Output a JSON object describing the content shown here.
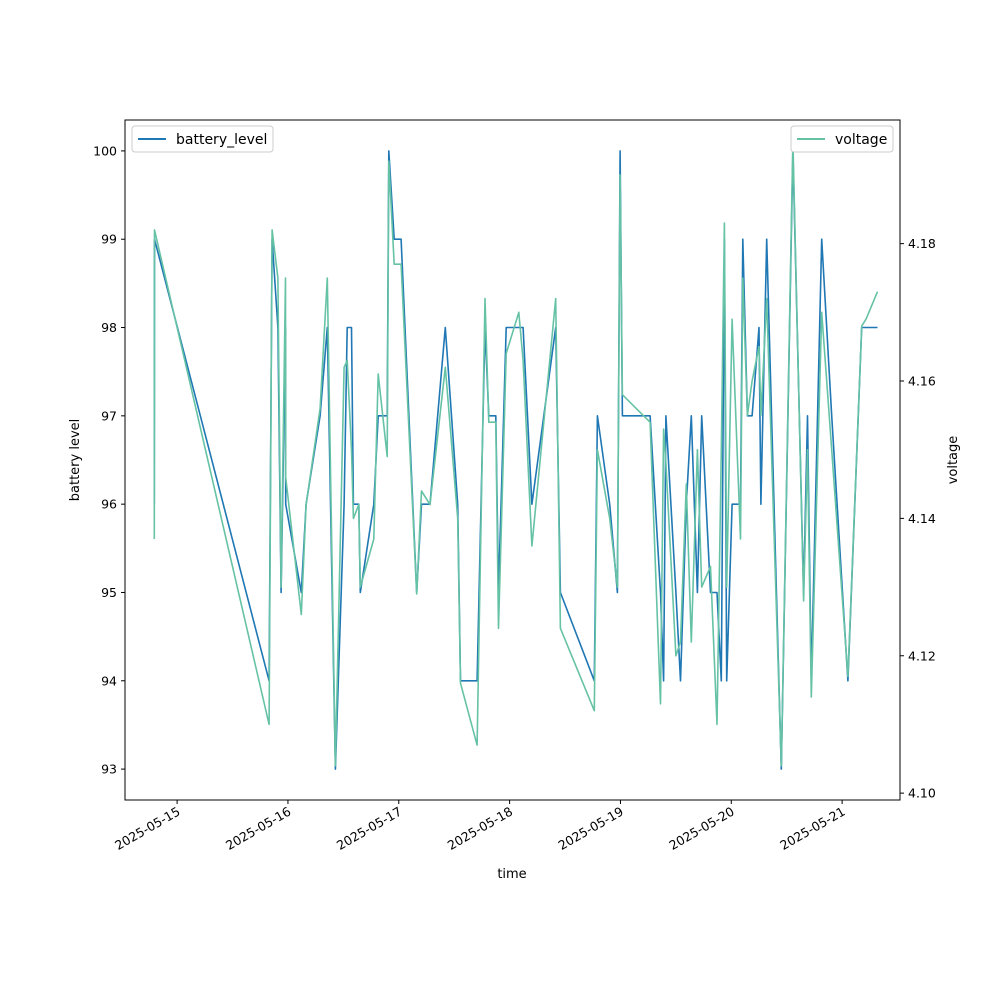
{
  "chart_data": {
    "type": "line",
    "xlabel": "time",
    "ylabel_left": "battery level",
    "ylabel_right": "voltage",
    "x_ticks": [
      "2025-05-15",
      "2025-05-16",
      "2025-05-17",
      "2025-05-18",
      "2025-05-19",
      "2025-05-20",
      "2025-05-21"
    ],
    "xlim": [
      "2025-05-14 12:43",
      "2025-05-21 12:32"
    ],
    "ylim_left": [
      92.65,
      100.35
    ],
    "yticks_left": [
      93,
      94,
      95,
      96,
      97,
      98,
      99,
      100
    ],
    "ylim_right": [
      4.099,
      4.198
    ],
    "yticks_right": [
      4.1,
      4.12,
      4.14,
      4.16,
      4.18
    ],
    "grid": false,
    "legend_left_placement": "upper-left",
    "legend_right_placement": "upper-right",
    "series": [
      {
        "name": "battery_level",
        "axis": "left",
        "color": "#1f77b4",
        "points": [
          [
            "2025-05-14 19:04",
            96.0
          ],
          [
            "2025-05-14 19:06",
            99.0
          ],
          [
            "2025-05-15 19:55",
            94.0
          ],
          [
            "2025-05-15 20:34",
            99.0
          ],
          [
            "2025-05-15 21:50",
            98.0
          ],
          [
            "2025-05-15 22:31",
            95.0
          ],
          [
            "2025-05-15 23:28",
            98.0
          ],
          [
            "2025-05-15 23:31",
            96.0
          ],
          [
            "2025-05-16 02:53",
            95.0
          ],
          [
            "2025-05-16 03:56",
            96.0
          ],
          [
            "2025-05-16 06:58",
            97.0
          ],
          [
            "2025-05-16 08:31",
            98.0
          ],
          [
            "2025-05-16 10:17",
            93.0
          ],
          [
            "2025-05-16 12:10",
            96.0
          ],
          [
            "2025-05-16 12:50",
            98.0
          ],
          [
            "2025-05-16 13:46",
            98.0
          ],
          [
            "2025-05-16 14:10",
            96.0
          ],
          [
            "2025-05-16 15:20",
            96.0
          ],
          [
            "2025-05-16 15:40",
            95.0
          ],
          [
            "2025-05-16 18:35",
            96.0
          ],
          [
            "2025-05-16 19:32",
            97.0
          ],
          [
            "2025-05-16 21:30",
            97.0
          ],
          [
            "2025-05-16 21:50",
            100.0
          ],
          [
            "2025-05-16 23:00",
            99.0
          ],
          [
            "2025-05-17 00:30",
            99.0
          ],
          [
            "2025-05-17 03:53",
            95.0
          ],
          [
            "2025-05-17 04:55",
            96.0
          ],
          [
            "2025-05-17 06:45",
            96.0
          ],
          [
            "2025-05-17 10:05",
            98.0
          ],
          [
            "2025-05-17 12:45",
            96.0
          ],
          [
            "2025-05-17 13:22",
            94.0
          ],
          [
            "2025-05-17 16:58",
            94.0
          ],
          [
            "2025-05-17 18:40",
            98.0
          ],
          [
            "2025-05-17 19:30",
            97.0
          ],
          [
            "2025-05-17 21:00",
            97.0
          ],
          [
            "2025-05-17 21:35",
            95.0
          ],
          [
            "2025-05-17 23:15",
            98.0
          ],
          [
            "2025-05-18 02:00",
            98.0
          ],
          [
            "2025-05-18 02:55",
            98.0
          ],
          [
            "2025-05-18 04:50",
            96.0
          ],
          [
            "2025-05-18 09:59",
            98.0
          ],
          [
            "2025-05-18 11:00",
            95.0
          ],
          [
            "2025-05-18 18:20",
            94.0
          ],
          [
            "2025-05-18 19:00",
            97.0
          ],
          [
            "2025-05-18 21:40",
            96.0
          ],
          [
            "2025-05-18 23:20",
            95.0
          ],
          [
            "2025-05-18 23:56",
            100.0
          ],
          [
            "2025-05-19 00:25",
            97.0
          ],
          [
            "2025-05-19 06:25",
            97.0
          ],
          [
            "2025-05-19 08:40",
            95.0
          ],
          [
            "2025-05-19 09:20",
            94.0
          ],
          [
            "2025-05-19 09:50",
            97.0
          ],
          [
            "2025-05-19 12:00",
            95.0
          ],
          [
            "2025-05-19 13:00",
            94.0
          ],
          [
            "2025-05-19 14:15",
            96.0
          ],
          [
            "2025-05-19 15:20",
            97.0
          ],
          [
            "2025-05-19 16:40",
            95.0
          ],
          [
            "2025-05-19 17:35",
            97.0
          ],
          [
            "2025-05-19 19:30",
            95.0
          ],
          [
            "2025-05-19 20:55",
            95.0
          ],
          [
            "2025-05-19 21:50",
            94.0
          ],
          [
            "2025-05-19 22:30",
            99.0
          ],
          [
            "2025-05-19 23:00",
            94.0
          ],
          [
            "2025-05-20 00:10",
            96.0
          ],
          [
            "2025-05-20 02:00",
            96.0
          ],
          [
            "2025-05-20 02:30",
            99.0
          ],
          [
            "2025-05-20 03:30",
            97.0
          ],
          [
            "2025-05-20 04:30",
            97.0
          ],
          [
            "2025-05-20 06:00",
            98.0
          ],
          [
            "2025-05-20 06:25",
            96.0
          ],
          [
            "2025-05-20 07:40",
            99.0
          ],
          [
            "2025-05-20 10:50",
            93.0
          ],
          [
            "2025-05-20 13:20",
            100.0
          ],
          [
            "2025-05-20 15:40",
            95.0
          ],
          [
            "2025-05-20 16:30",
            97.0
          ],
          [
            "2025-05-20 17:20",
            94.0
          ],
          [
            "2025-05-20 19:35",
            99.0
          ],
          [
            "2025-05-20 21:45",
            97.0
          ],
          [
            "2025-05-21 01:15",
            94.0
          ],
          [
            "2025-05-21 04:15",
            98.0
          ],
          [
            "2025-05-21 05:10",
            98.0
          ],
          [
            "2025-05-21 07:40",
            98.0
          ]
        ]
      },
      {
        "name": "voltage",
        "axis": "right",
        "color": "#66c2a5",
        "points": [
          [
            "2025-05-14 19:04",
            4.137
          ],
          [
            "2025-05-14 19:06",
            4.182
          ],
          [
            "2025-05-15 19:55",
            4.11
          ],
          [
            "2025-05-15 20:34",
            4.182
          ],
          [
            "2025-05-15 21:50",
            4.175
          ],
          [
            "2025-05-15 22:31",
            4.13
          ],
          [
            "2025-05-15 23:28",
            4.175
          ],
          [
            "2025-05-15 23:31",
            4.146
          ],
          [
            "2025-05-16 02:53",
            4.126
          ],
          [
            "2025-05-16 03:56",
            4.142
          ],
          [
            "2025-05-16 06:58",
            4.156
          ],
          [
            "2025-05-16 08:31",
            4.175
          ],
          [
            "2025-05-16 10:17",
            4.104
          ],
          [
            "2025-05-16 12:10",
            4.162
          ],
          [
            "2025-05-16 12:50",
            4.163
          ],
          [
            "2025-05-16 13:46",
            4.15
          ],
          [
            "2025-05-16 14:10",
            4.14
          ],
          [
            "2025-05-16 15:20",
            4.142
          ],
          [
            "2025-05-16 15:40",
            4.13
          ],
          [
            "2025-05-16 18:35",
            4.137
          ],
          [
            "2025-05-16 19:32",
            4.161
          ],
          [
            "2025-05-16 21:30",
            4.149
          ],
          [
            "2025-05-16 21:50",
            4.192
          ],
          [
            "2025-05-16 23:00",
            4.177
          ],
          [
            "2025-05-17 00:30",
            4.177
          ],
          [
            "2025-05-17 03:53",
            4.129
          ],
          [
            "2025-05-17 04:55",
            4.144
          ],
          [
            "2025-05-17 06:45",
            4.142
          ],
          [
            "2025-05-17 10:05",
            4.162
          ],
          [
            "2025-05-17 12:45",
            4.14
          ],
          [
            "2025-05-17 13:22",
            4.116
          ],
          [
            "2025-05-17 16:58",
            4.107
          ],
          [
            "2025-05-17 18:40",
            4.172
          ],
          [
            "2025-05-17 19:30",
            4.154
          ],
          [
            "2025-05-17 21:00",
            4.154
          ],
          [
            "2025-05-17 21:35",
            4.124
          ],
          [
            "2025-05-17 23:15",
            4.164
          ],
          [
            "2025-05-18 02:00",
            4.17
          ],
          [
            "2025-05-18 02:55",
            4.163
          ],
          [
            "2025-05-18 04:50",
            4.136
          ],
          [
            "2025-05-18 09:59",
            4.172
          ],
          [
            "2025-05-18 11:00",
            4.124
          ],
          [
            "2025-05-18 18:20",
            4.112
          ],
          [
            "2025-05-18 19:00",
            4.15
          ],
          [
            "2025-05-18 21:40",
            4.14
          ],
          [
            "2025-05-18 23:20",
            4.13
          ],
          [
            "2025-05-18 23:56",
            4.19
          ],
          [
            "2025-05-19 00:25",
            4.158
          ],
          [
            "2025-05-19 06:25",
            4.154
          ],
          [
            "2025-05-19 08:40",
            4.113
          ],
          [
            "2025-05-19 09:20",
            4.153
          ],
          [
            "2025-05-19 09:50",
            4.148
          ],
          [
            "2025-05-19 12:00",
            4.12
          ],
          [
            "2025-05-19 13:00",
            4.122
          ],
          [
            "2025-05-19 14:15",
            4.145
          ],
          [
            "2025-05-19 15:20",
            4.122
          ],
          [
            "2025-05-19 16:40",
            4.15
          ],
          [
            "2025-05-19 17:35",
            4.13
          ],
          [
            "2025-05-19 19:30",
            4.133
          ],
          [
            "2025-05-19 20:55",
            4.11
          ],
          [
            "2025-05-19 21:50",
            4.15
          ],
          [
            "2025-05-19 22:30",
            4.183
          ],
          [
            "2025-05-19 23:00",
            4.13
          ],
          [
            "2025-05-20 00:10",
            4.169
          ],
          [
            "2025-05-20 02:00",
            4.137
          ],
          [
            "2025-05-20 02:30",
            4.175
          ],
          [
            "2025-05-20 03:30",
            4.155
          ],
          [
            "2025-05-20 04:30",
            4.16
          ],
          [
            "2025-05-20 06:00",
            4.165
          ],
          [
            "2025-05-20 06:25",
            4.155
          ],
          [
            "2025-05-20 07:40",
            4.172
          ],
          [
            "2025-05-20 10:50",
            4.104
          ],
          [
            "2025-05-20 13:20",
            4.195
          ],
          [
            "2025-05-20 15:40",
            4.128
          ],
          [
            "2025-05-20 16:30",
            4.15
          ],
          [
            "2025-05-20 17:20",
            4.114
          ],
          [
            "2025-05-20 19:35",
            4.17
          ],
          [
            "2025-05-20 21:45",
            4.15
          ],
          [
            "2025-05-21 01:15",
            4.117
          ],
          [
            "2025-05-21 04:15",
            4.168
          ],
          [
            "2025-05-21 05:10",
            4.169
          ],
          [
            "2025-05-21 07:40",
            4.173
          ]
        ]
      }
    ]
  }
}
